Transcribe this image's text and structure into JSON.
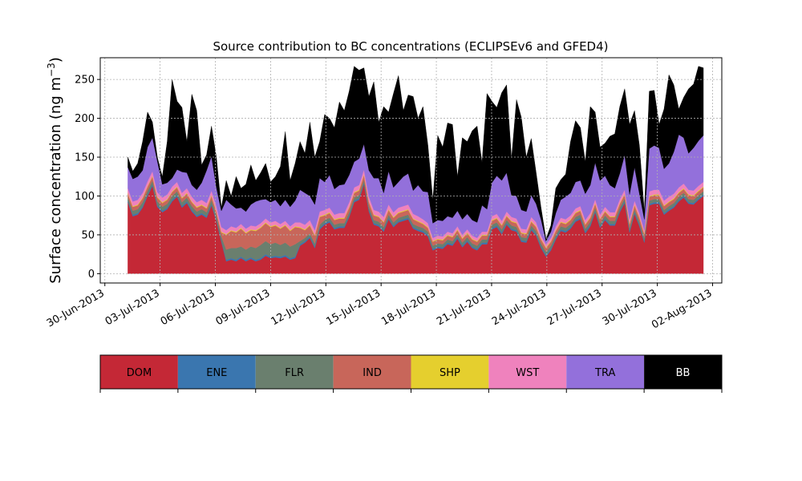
{
  "chart_data": {
    "type": "area",
    "stacked": true,
    "title": "Source contribution to BC concentrations (ECLIPSEv6 and GFED4)",
    "ylabel_main": "Surface concentration (ng m",
    "ylabel_exponent": "−3",
    "ylabel_close": ")",
    "ylim": [
      -12,
      278
    ],
    "yticks": [
      0,
      50,
      100,
      150,
      200,
      250
    ],
    "xlim": [
      "2013-06-29T18:00",
      "2013-08-02T12:00"
    ],
    "xticks": [
      "2013-06-30",
      "2013-07-03",
      "2013-07-06",
      "2013-07-09",
      "2013-07-12",
      "2013-07-15",
      "2013-07-18",
      "2013-07-21",
      "2013-07-24",
      "2013-07-27",
      "2013-07-30",
      "2013-08-02"
    ],
    "xtick_labels": [
      "30-Jun-2013",
      "03-Jul-2013",
      "06-Jul-2013",
      "09-Jul-2013",
      "12-Jul-2013",
      "15-Jul-2013",
      "18-Jul-2013",
      "21-Jul-2013",
      "24-Jul-2013",
      "27-Jul-2013",
      "30-Jul-2013",
      "02-Aug-2013"
    ],
    "grid": true,
    "x_start": "2013-07-01T06:00",
    "x_end": "2013-08-01T12:00",
    "sources": [
      "DOM",
      "ENE",
      "FLR",
      "IND",
      "SHP",
      "WST",
      "TRA",
      "BB"
    ],
    "colors": {
      "DOM": "#c42836",
      "ENE": "#3a76af",
      "FLR": "#6a7f6e",
      "IND": "#c8665a",
      "SHP": "#e5cf2e",
      "WST": "#ef82bd",
      "TRA": "#9370db",
      "BB": "#000000"
    },
    "cumulative_tops": {
      "DOM": [
        92,
        74,
        76,
        85,
        100,
        113,
        86,
        79,
        83,
        93,
        99,
        85,
        91,
        80,
        73,
        76,
        72,
        88,
        68,
        41,
        16,
        18,
        16,
        20,
        16,
        19,
        16,
        18,
        23,
        20,
        21,
        20,
        22,
        18,
        20,
        36,
        40,
        46,
        33,
        57,
        63,
        66,
        57,
        59,
        59,
        73,
        92,
        95,
        115,
        80,
        63,
        61,
        54,
        70,
        60,
        66,
        68,
        70,
        58,
        55,
        53,
        48,
        30,
        33,
        32,
        38,
        36,
        45,
        34,
        41,
        33,
        30,
        38,
        38,
        57,
        60,
        51,
        63,
        56,
        54,
        41,
        40,
        56,
        49,
        33,
        22,
        30,
        44,
        55,
        53,
        58,
        67,
        70,
        52,
        61,
        79,
        59,
        69,
        62,
        62,
        79,
        91,
        53,
        77,
        61,
        40,
        88,
        90,
        90,
        76,
        81,
        85,
        93,
        98,
        90,
        89,
        95,
        100
      ],
      "ENE": [
        94,
        76,
        78,
        87,
        102,
        115,
        88,
        81,
        85,
        95,
        101,
        87,
        93,
        82,
        75,
        78,
        74,
        90,
        70,
        43,
        18,
        20,
        18,
        22,
        18,
        21,
        18,
        20,
        25,
        22,
        23,
        22,
        24,
        20,
        22,
        38,
        42,
        48,
        35,
        59,
        65,
        68,
        59,
        61,
        61,
        75,
        94,
        97,
        117,
        82,
        65,
        63,
        56,
        72,
        62,
        68,
        70,
        72,
        60,
        57,
        55,
        50,
        32,
        35,
        34,
        40,
        38,
        47,
        36,
        43,
        35,
        32,
        40,
        40,
        59,
        62,
        53,
        65,
        58,
        56,
        43,
        42,
        58,
        51,
        35,
        24,
        32,
        46,
        57,
        55,
        60,
        69,
        72,
        54,
        63,
        81,
        61,
        71,
        64,
        64,
        81,
        93,
        55,
        79,
        63,
        42,
        90,
        92,
        92,
        78,
        83,
        87,
        95,
        100,
        92,
        91,
        97,
        102
      ],
      "FLR": [
        98,
        81,
        83,
        92,
        107,
        120,
        93,
        86,
        90,
        100,
        106,
        92,
        98,
        87,
        80,
        83,
        79,
        95,
        75,
        48,
        31,
        33,
        33,
        35,
        31,
        35,
        33,
        37,
        42,
        38,
        40,
        37,
        40,
        35,
        38,
        42,
        46,
        52,
        39,
        63,
        69,
        72,
        63,
        65,
        65,
        79,
        98,
        101,
        121,
        86,
        69,
        67,
        60,
        76,
        66,
        72,
        74,
        76,
        64,
        61,
        59,
        54,
        36,
        39,
        38,
        44,
        42,
        51,
        40,
        47,
        39,
        36,
        44,
        44,
        63,
        66,
        57,
        69,
        62,
        60,
        47,
        46,
        62,
        55,
        39,
        28,
        36,
        50,
        61,
        59,
        64,
        73,
        76,
        58,
        67,
        85,
        65,
        75,
        68,
        68,
        85,
        97,
        59,
        83,
        67,
        46,
        94,
        96,
        96,
        82,
        87,
        91,
        99,
        104,
        96,
        95,
        101,
        106
      ],
      "IND": [
        103,
        86,
        88,
        97,
        112,
        125,
        98,
        91,
        95,
        105,
        111,
        97,
        103,
        92,
        85,
        88,
        84,
        100,
        80,
        53,
        50,
        55,
        53,
        58,
        52,
        56,
        55,
        59,
        65,
        60,
        62,
        58,
        62,
        55,
        60,
        59,
        56,
        62,
        49,
        73,
        75,
        78,
        69,
        71,
        71,
        85,
        104,
        107,
        127,
        92,
        75,
        73,
        66,
        82,
        72,
        78,
        80,
        82,
        70,
        67,
        64,
        59,
        41,
        44,
        43,
        49,
        47,
        56,
        45,
        52,
        44,
        41,
        49,
        49,
        68,
        71,
        62,
        74,
        67,
        65,
        52,
        51,
        67,
        60,
        44,
        33,
        41,
        55,
        66,
        64,
        69,
        78,
        81,
        63,
        72,
        90,
        70,
        80,
        73,
        73,
        90,
        102,
        64,
        88,
        72,
        51,
        99,
        101,
        101,
        87,
        92,
        96,
        104,
        109,
        101,
        100,
        106,
        111
      ],
      "SHP": [
        104,
        87,
        89,
        98,
        113,
        126,
        99,
        92,
        96,
        106,
        112,
        98,
        104,
        93,
        86,
        89,
        85,
        101,
        81,
        54,
        51,
        56,
        54,
        59,
        53,
        57,
        56,
        60,
        66,
        61,
        63,
        59,
        63,
        56,
        61,
        60,
        57,
        63,
        50,
        74,
        76,
        79,
        70,
        72,
        72,
        86,
        105,
        108,
        128,
        93,
        76,
        74,
        67,
        83,
        73,
        79,
        81,
        83,
        71,
        68,
        65,
        60,
        42,
        45,
        44,
        50,
        48,
        57,
        46,
        53,
        45,
        42,
        50,
        50,
        69,
        72,
        63,
        75,
        68,
        66,
        53,
        52,
        68,
        61,
        45,
        34,
        42,
        56,
        67,
        65,
        70,
        79,
        82,
        64,
        73,
        91,
        71,
        81,
        74,
        74,
        91,
        103,
        65,
        89,
        73,
        52,
        100,
        102,
        102,
        88,
        93,
        97,
        105,
        110,
        102,
        101,
        107,
        112
      ],
      "WST": [
        110,
        93,
        95,
        104,
        119,
        132,
        105,
        98,
        102,
        112,
        118,
        104,
        110,
        99,
        92,
        95,
        91,
        107,
        87,
        60,
        56,
        61,
        59,
        64,
        58,
        62,
        61,
        65,
        71,
        66,
        68,
        64,
        68,
        61,
        66,
        66,
        63,
        69,
        56,
        80,
        82,
        85,
        76,
        78,
        78,
        92,
        111,
        114,
        134,
        99,
        82,
        80,
        73,
        89,
        79,
        85,
        87,
        89,
        77,
        74,
        70,
        65,
        46,
        49,
        48,
        54,
        52,
        61,
        50,
        57,
        49,
        46,
        54,
        54,
        74,
        77,
        68,
        80,
        73,
        71,
        58,
        57,
        73,
        66,
        49,
        38,
        46,
        61,
        72,
        70,
        75,
        84,
        87,
        69,
        78,
        96,
        76,
        86,
        79,
        79,
        96,
        108,
        70,
        94,
        78,
        56,
        106,
        108,
        108,
        94,
        99,
        103,
        111,
        116,
        108,
        107,
        113,
        118
      ],
      "TRA": [
        137,
        122,
        125,
        133,
        163,
        175,
        145,
        115,
        117,
        123,
        134,
        131,
        130,
        114,
        108,
        117,
        133,
        151,
        111,
        81,
        95,
        89,
        84,
        85,
        80,
        89,
        93,
        95,
        96,
        92,
        95,
        87,
        95,
        86,
        94,
        108,
        104,
        100,
        89,
        123,
        118,
        127,
        109,
        114,
        115,
        127,
        144,
        148,
        167,
        133,
        123,
        123,
        104,
        132,
        111,
        118,
        125,
        129,
        107,
        114,
        106,
        105,
        65,
        69,
        68,
        74,
        72,
        81,
        70,
        77,
        69,
        66,
        88,
        83,
        117,
        126,
        120,
        130,
        101,
        100,
        82,
        80,
        101,
        90,
        70,
        42,
        54,
        78,
        95,
        99,
        104,
        118,
        120,
        103,
        114,
        143,
        120,
        126,
        114,
        110,
        129,
        153,
        102,
        137,
        103,
        70,
        161,
        165,
        162,
        135,
        142,
        157,
        179,
        175,
        155,
        162,
        171,
        178
      ],
      "BB": [
        150,
        132,
        142,
        170,
        208,
        195,
        150,
        125,
        170,
        250,
        222,
        214,
        170,
        231,
        210,
        140,
        153,
        190,
        150,
        85,
        120,
        100,
        125,
        110,
        115,
        140,
        120,
        130,
        142,
        118,
        125,
        138,
        183,
        120,
        142,
        170,
        155,
        195,
        150,
        170,
        205,
        200,
        188,
        221,
        210,
        235,
        267,
        262,
        265,
        228,
        247,
        195,
        215,
        208,
        232,
        255,
        210,
        230,
        228,
        200,
        215,
        165,
        95,
        178,
        163,
        194,
        192,
        125,
        175,
        170,
        184,
        190,
        143,
        232,
        222,
        214,
        233,
        243,
        148,
        224,
        201,
        150,
        174,
        130,
        85,
        45,
        62,
        110,
        121,
        128,
        170,
        197,
        188,
        144,
        215,
        208,
        163,
        168,
        177,
        180,
        215,
        238,
        192,
        210,
        165,
        80,
        235,
        236,
        192,
        212,
        256,
        243,
        212,
        227,
        238,
        244,
        267,
        265
      ]
    },
    "legend": {
      "labels": [
        "DOM",
        "ENE",
        "FLR",
        "IND",
        "SHP",
        "WST",
        "TRA",
        "BB"
      ],
      "label_colors": {
        "DOM": "#000000",
        "ENE": "#000000",
        "FLR": "#000000",
        "IND": "#000000",
        "SHP": "#000000",
        "WST": "#000000",
        "TRA": "#000000",
        "BB": "#ffffff"
      }
    }
  }
}
